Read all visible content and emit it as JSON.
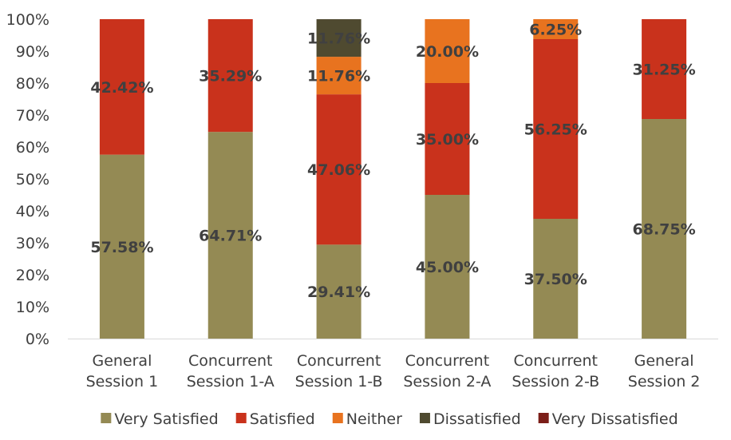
{
  "chart_data": {
    "type": "bar",
    "stacked": true,
    "percent": true,
    "title": "",
    "xlabel": "",
    "ylabel": "",
    "ylim": [
      0,
      100
    ],
    "yticks": [
      "0%",
      "10%",
      "20%",
      "30%",
      "40%",
      "50%",
      "60%",
      "70%",
      "80%",
      "90%",
      "100%"
    ],
    "grid": false,
    "legend_position": "bottom",
    "categories": [
      [
        "General",
        "Session 1"
      ],
      [
        "Concurrent",
        "Session 1-A"
      ],
      [
        "Concurrent",
        "Session 1-B"
      ],
      [
        "Concurrent",
        "Session 2-A"
      ],
      [
        "Concurrent",
        "Session 2-B"
      ],
      [
        "General",
        "Session 2"
      ]
    ],
    "series": [
      {
        "name": "Very Satisfied",
        "color": "#948A54",
        "values": [
          57.58,
          64.71,
          29.41,
          45.0,
          37.5,
          68.75
        ],
        "labels": [
          "57.58%",
          "64.71%",
          "29.41%",
          "45.00%",
          "37.50%",
          "68.75%"
        ]
      },
      {
        "name": "Satisfied",
        "color": "#C9321C",
        "values": [
          42.42,
          35.29,
          47.06,
          35.0,
          56.25,
          31.25
        ],
        "labels": [
          "42.42%",
          "35.29%",
          "47.06%",
          "35.00%",
          "56.25%",
          "31.25%"
        ]
      },
      {
        "name": "Neither",
        "color": "#E8731F",
        "values": [
          0,
          0,
          11.76,
          20.0,
          6.25,
          0
        ],
        "labels": [
          "",
          "",
          "11.76%",
          "20.00%",
          "6.25%",
          ""
        ]
      },
      {
        "name": "Dissatisfied",
        "color": "#4F4A30",
        "values": [
          0,
          0,
          11.76,
          0,
          0,
          0
        ],
        "labels": [
          "",
          "",
          "11.76%",
          "",
          "",
          ""
        ]
      },
      {
        "name": "Very Dissatisfied",
        "color": "#7B1E18",
        "values": [
          0,
          0,
          0,
          0,
          0,
          0
        ],
        "labels": [
          "",
          "",
          "",
          "",
          "",
          ""
        ]
      }
    ]
  }
}
